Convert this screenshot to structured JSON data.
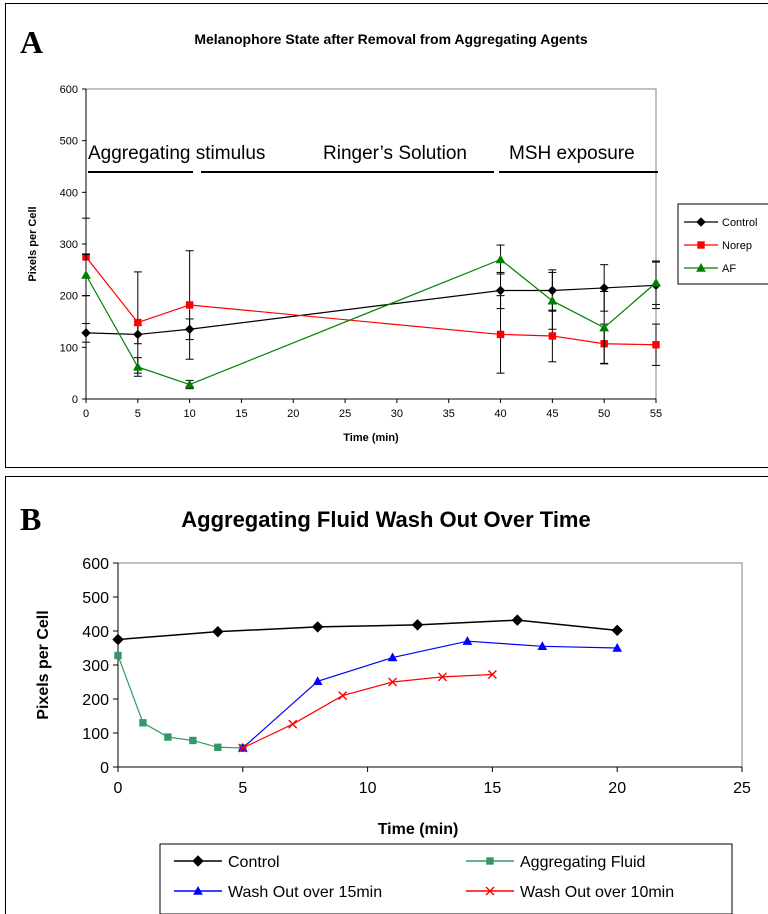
{
  "chart_data": [
    {
      "type": "line",
      "panel_label": "A",
      "title": "Melanophore State after Removal from Aggregating Agents",
      "xlabel": "Time (min)",
      "ylabel": "Pixels per Cell",
      "xlim": [
        0,
        55
      ],
      "ylim": [
        0,
        600
      ],
      "x_ticks": [
        0,
        5,
        10,
        15,
        20,
        25,
        30,
        35,
        40,
        45,
        50,
        55
      ],
      "y_ticks": [
        0,
        100,
        200,
        300,
        400,
        500,
        600
      ],
      "grid": false,
      "legend_position": "right",
      "annotations": [
        "Aggregating stimulus",
        "Ringer’s Solution",
        "MSH  exposure"
      ],
      "series": [
        {
          "name": "Control",
          "color": "#000000",
          "marker": "diamond",
          "x": [
            0,
            5,
            10,
            40,
            45,
            50,
            55
          ],
          "y": [
            128,
            125,
            135,
            210,
            210,
            215,
            220
          ],
          "err": [
            18,
            18,
            20,
            35,
            40,
            45,
            45
          ]
        },
        {
          "name": "Norep",
          "color": "#ff0000",
          "marker": "square",
          "x": [
            0,
            5,
            10,
            40,
            45,
            50,
            55
          ],
          "y": [
            275,
            148,
            182,
            125,
            122,
            107,
            105
          ],
          "err": [
            75,
            98,
            105,
            75,
            50,
            38,
            40
          ]
        },
        {
          "name": "AF",
          "color": "#008000",
          "marker": "triangle",
          "x": [
            0,
            5,
            10,
            40,
            45,
            50,
            55
          ],
          "y": [
            240,
            62,
            28,
            270,
            190,
            138,
            225
          ],
          "err": [
            40,
            18,
            8,
            28,
            55,
            70,
            42
          ]
        }
      ]
    },
    {
      "type": "scatter",
      "panel_label": "B",
      "title": "Aggregating Fluid Wash Out Over Time",
      "xlabel": "Time (min)",
      "ylabel": "Pixels per Cell",
      "xlim": [
        0,
        25
      ],
      "ylim": [
        0,
        600
      ],
      "x_ticks": [
        0,
        5,
        10,
        15,
        20,
        25
      ],
      "y_ticks": [
        0,
        100,
        200,
        300,
        400,
        500,
        600
      ],
      "grid": false,
      "legend_position": "bottom",
      "series": [
        {
          "name": "Control",
          "color": "#000000",
          "marker": "diamond",
          "x": [
            0,
            4,
            8,
            12,
            16,
            20
          ],
          "y": [
            375,
            398,
            412,
            418,
            432,
            402
          ]
        },
        {
          "name": "Aggregating Fluid",
          "color": "#339966",
          "marker": "square",
          "x": [
            0,
            1,
            2,
            3,
            4,
            5
          ],
          "y": [
            328,
            130,
            88,
            78,
            58,
            56
          ]
        },
        {
          "name": "Wash Out  over 15min",
          "color": "#0000ff",
          "marker": "triangle",
          "x": [
            5,
            8,
            11,
            14,
            17,
            20
          ],
          "y": [
            56,
            252,
            322,
            370,
            355,
            350
          ]
        },
        {
          "name": "Wash Out over 10min",
          "color": "#ff0000",
          "marker": "x",
          "x": [
            5,
            7,
            9,
            11,
            13,
            15
          ],
          "y": [
            56,
            126,
            210,
            250,
            265,
            272
          ]
        }
      ]
    }
  ]
}
